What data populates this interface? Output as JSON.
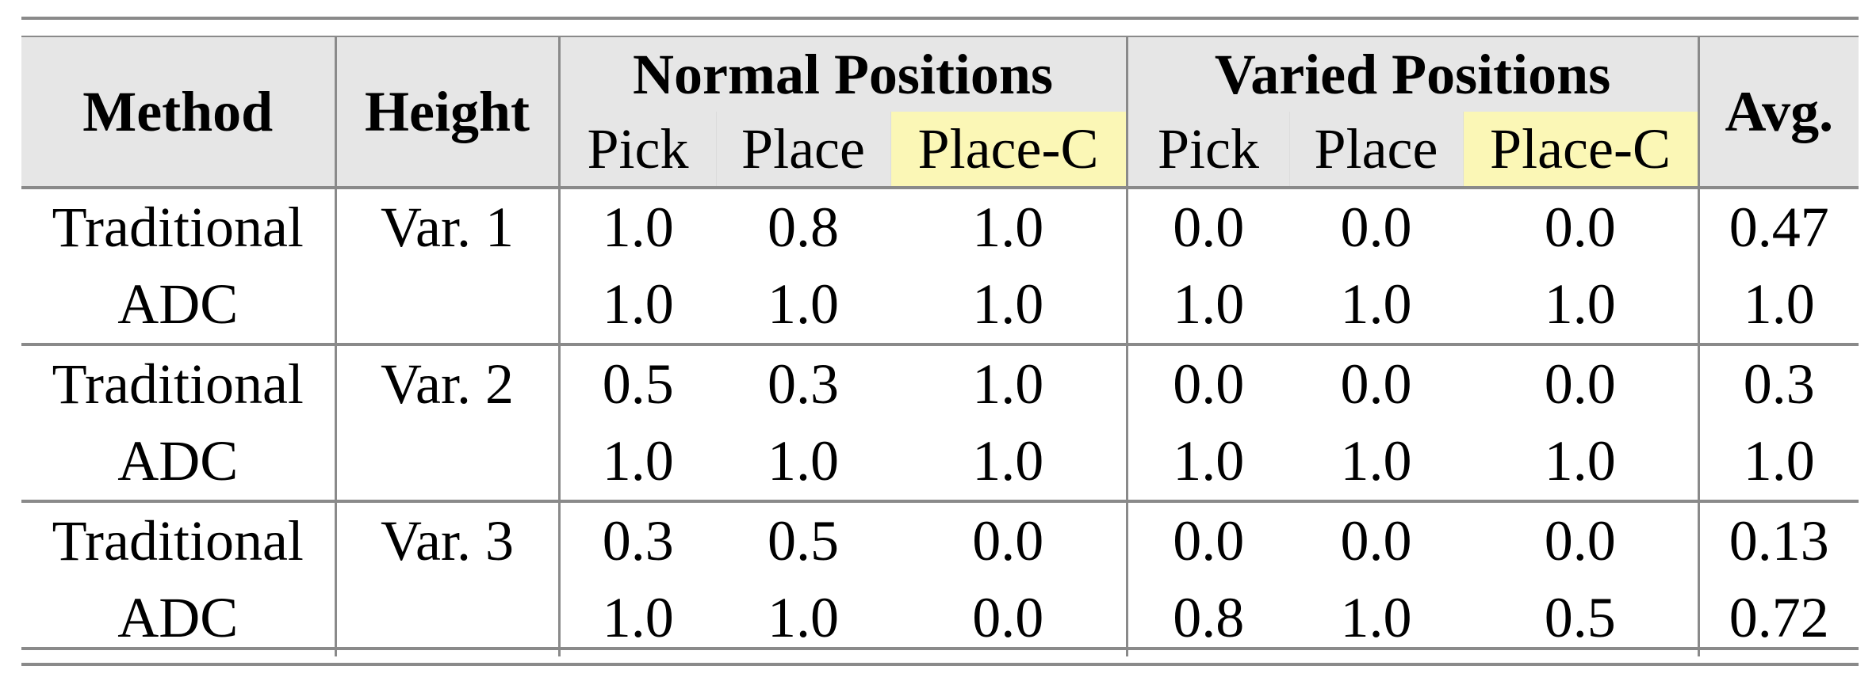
{
  "header": {
    "method": "Method",
    "height": "Height",
    "normal_group": "Normal Positions",
    "varied_group": "Varied Positions",
    "avg": "Avg.",
    "sub": [
      "Pick",
      "Place",
      "Place-C",
      "Pick",
      "Place",
      "Place-C"
    ]
  },
  "highlight_color": "#fbf7b6",
  "rows": [
    {
      "method": "Traditional",
      "height": "Var. 1",
      "values": [
        "1.0",
        "0.8",
        "1.0",
        "0.0",
        "0.0",
        "0.0"
      ],
      "avg": "0.47"
    },
    {
      "method": "ADC",
      "height": "",
      "values": [
        "1.0",
        "1.0",
        "1.0",
        "1.0",
        "1.0",
        "1.0"
      ],
      "avg": "1.0"
    },
    {
      "method": "Traditional",
      "height": "Var. 2",
      "values": [
        "0.5",
        "0.3",
        "1.0",
        "0.0",
        "0.0",
        "0.0"
      ],
      "avg": "0.3"
    },
    {
      "method": "ADC",
      "height": "",
      "values": [
        "1.0",
        "1.0",
        "1.0",
        "1.0",
        "1.0",
        "1.0"
      ],
      "avg": "1.0"
    },
    {
      "method": "Traditional",
      "height": "Var. 3",
      "values": [
        "0.3",
        "0.5",
        "0.0",
        "0.0",
        "0.0",
        "0.0"
      ],
      "avg": "0.13"
    },
    {
      "method": "ADC",
      "height": "",
      "values": [
        "1.0",
        "1.0",
        "0.0",
        "0.8",
        "1.0",
        "0.5"
      ],
      "avg": "0.72"
    }
  ]
}
